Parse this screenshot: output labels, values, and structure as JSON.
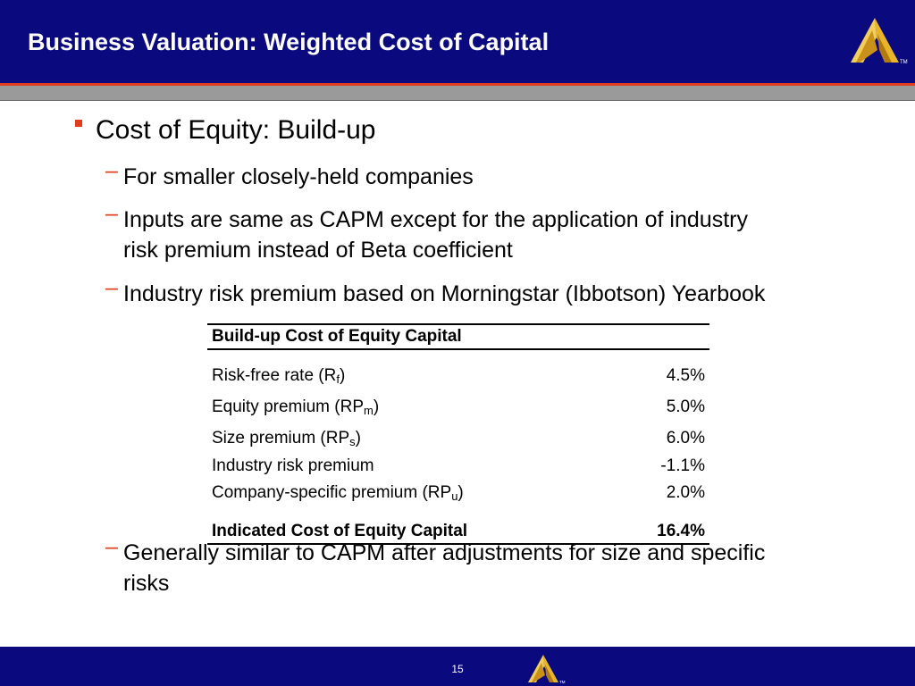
{
  "header": {
    "title": "Business Valuation: Weighted Cost of Capital",
    "logo_icon": "peak-logo-icon",
    "logo_mark": "TM"
  },
  "content": {
    "bullet": "Cost of Equity: Build-up",
    "sub_bullets": [
      "For smaller closely-held companies",
      "Inputs are same as CAPM except for the application of industry",
      "risk premium instead of Beta coefficient",
      "Industry risk premium based on Morningstar (Ibbotson) Yearbook",
      "Generally similar to CAPM after adjustments for size and specific",
      "risks"
    ],
    "dash": "–"
  },
  "table": {
    "title": "Build-up Cost of Equity Capital",
    "rows": [
      {
        "label": "Risk-free rate (R",
        "sub": "f",
        "label_end": ")",
        "value": "4.5%"
      },
      {
        "label": "Equity premium (RP",
        "sub": "m",
        "label_end": ")",
        "value": "5.0%"
      },
      {
        "label": "Size premium (RP",
        "sub": "s",
        "label_end": ")",
        "value": "6.0%"
      },
      {
        "label": "Industry risk premium",
        "sub": "",
        "label_end": "",
        "value": "-1.1%"
      },
      {
        "label": "Company-specific premium (RP",
        "sub": "u",
        "label_end": ")",
        "value": "2.0%"
      }
    ],
    "total": {
      "label": "Indicated Cost of Equity Capital",
      "value": "16.4%"
    }
  },
  "footer": {
    "page_number": "15",
    "logo_mark": "TM"
  },
  "colors": {
    "navy": "#0a0a7e",
    "accent_red": "#e03c1e",
    "logo_gold": "#e8b52a",
    "band_gray": "#9a9a9a"
  }
}
